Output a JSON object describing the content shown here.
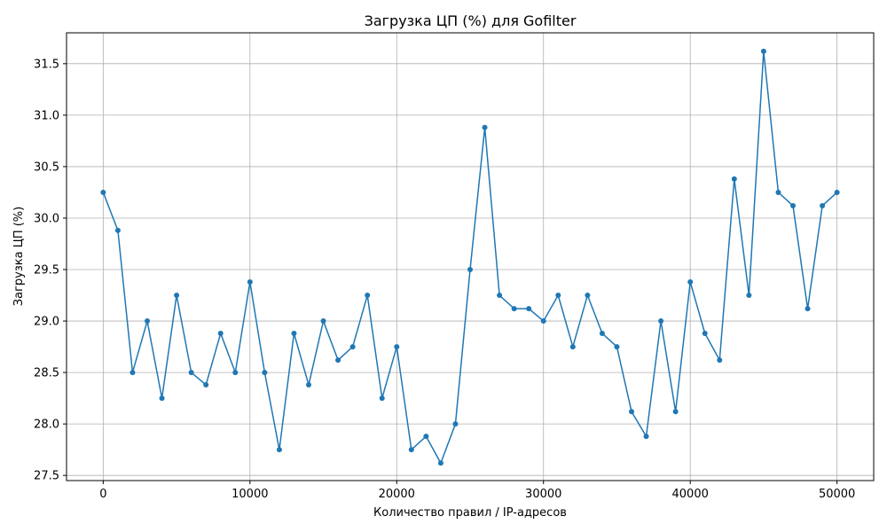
{
  "chart_data": {
    "type": "line",
    "title": "Загрузка ЦП (%) для Gofilter",
    "xlabel": "Количество правил / IP-адресов",
    "ylabel": "Загрузка ЦП (%)",
    "xlim": [
      -2500,
      52500
    ],
    "ylim": [
      27.45,
      31.8
    ],
    "x_ticks": [
      0,
      10000,
      20000,
      30000,
      40000,
      50000
    ],
    "x_tick_labels": [
      "0",
      "10000",
      "20000",
      "30000",
      "40000",
      "50000"
    ],
    "y_ticks": [
      27.5,
      28.0,
      28.5,
      29.0,
      29.5,
      30.0,
      30.5,
      31.0,
      31.5
    ],
    "y_tick_labels": [
      "27.5",
      "28.0",
      "28.5",
      "29.0",
      "29.5",
      "30.0",
      "30.5",
      "31.0",
      "31.5"
    ],
    "grid": true,
    "legend": "none",
    "series": [
      {
        "color": "#1f77b4",
        "marker": "circle",
        "x": [
          0,
          1000,
          2000,
          3000,
          4000,
          5000,
          6000,
          7000,
          8000,
          9000,
          10000,
          11000,
          12000,
          13000,
          14000,
          15000,
          16000,
          17000,
          18000,
          19000,
          20000,
          21000,
          22000,
          23000,
          24000,
          25000,
          26000,
          27000,
          28000,
          29000,
          30000,
          31000,
          32000,
          33000,
          34000,
          35000,
          36000,
          37000,
          38000,
          39000,
          40000,
          41000,
          42000,
          43000,
          44000,
          45000,
          46000,
          47000,
          48000,
          49000,
          50000
        ],
        "values": [
          30.25,
          29.88,
          28.5,
          29.0,
          28.25,
          29.25,
          28.5,
          28.38,
          28.88,
          28.5,
          29.38,
          28.5,
          27.75,
          28.88,
          28.38,
          29.0,
          28.62,
          28.75,
          29.25,
          28.25,
          28.75,
          27.75,
          27.88,
          27.62,
          28.0,
          29.5,
          30.88,
          29.25,
          29.12,
          29.12,
          29.0,
          29.25,
          28.75,
          29.25,
          28.88,
          28.75,
          28.12,
          27.88,
          29.0,
          28.12,
          29.38,
          28.88,
          28.62,
          30.38,
          29.25,
          31.62,
          30.25,
          30.12,
          29.12,
          30.12,
          30.25
        ]
      }
    ]
  }
}
